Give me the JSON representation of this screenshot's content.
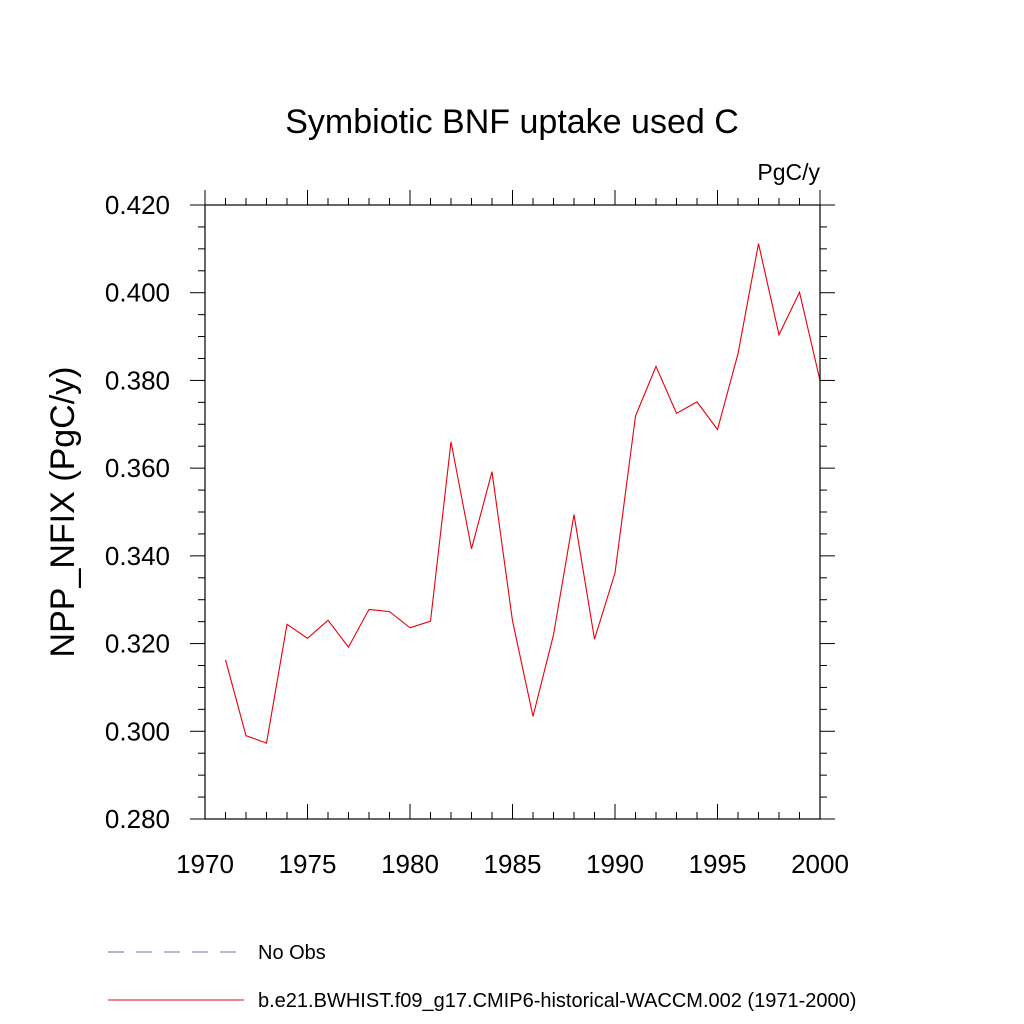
{
  "chart_data": {
    "type": "line",
    "title": "Symbiotic BNF uptake used C",
    "units": "PgC/y",
    "ylabel": "NPP_NFIX  (PgC/y)",
    "xlabel": "",
    "xlim": [
      1970,
      2000
    ],
    "ylim": [
      0.28,
      0.42
    ],
    "xticks": [
      "1970",
      "1975",
      "1980",
      "1985",
      "1990",
      "1995",
      "2000"
    ],
    "yticks": [
      "0.280",
      "0.300",
      "0.320",
      "0.340",
      "0.360",
      "0.380",
      "0.400",
      "0.420"
    ],
    "grid": false,
    "legend_position": "bottom",
    "series": [
      {
        "name": "b.e21.BWHIST.f09_g17.CMIP6-historical-WACCM.002 (1971-2000)",
        "color": "#e8000b",
        "style": "solid",
        "x": [
          1971,
          1972,
          1973,
          1974,
          1975,
          1976,
          1977,
          1978,
          1979,
          1980,
          1981,
          1982,
          1983,
          1984,
          1985,
          1986,
          1987,
          1988,
          1989,
          1990,
          1991,
          1992,
          1993,
          1994,
          1995,
          1996,
          1997,
          1998,
          1999,
          2000
        ],
        "values": [
          0.3163,
          0.299,
          0.2973,
          0.3244,
          0.3212,
          0.3253,
          0.3192,
          0.3278,
          0.3273,
          0.3236,
          0.3251,
          0.366,
          0.3416,
          0.3592,
          0.3252,
          0.3034,
          0.322,
          0.3494,
          0.321,
          0.3361,
          0.3719,
          0.3832,
          0.3725,
          0.3751,
          0.3688,
          0.3861,
          0.4112,
          0.3904,
          0.4001,
          0.38
        ]
      }
    ],
    "legend": [
      {
        "label": "No Obs",
        "color": "#7b6fb0",
        "style": "dashed"
      },
      {
        "label": "b.e21.BWHIST.f09_g17.CMIP6-historical-WACCM.002 (1971-2000)",
        "color": "#e8000b",
        "style": "solid"
      }
    ]
  }
}
